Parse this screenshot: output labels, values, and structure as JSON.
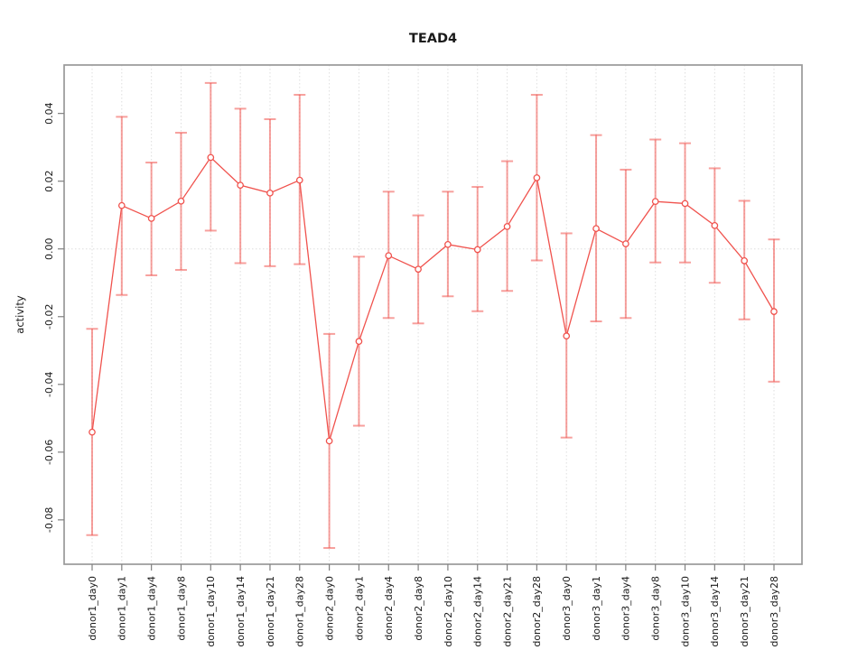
{
  "chart_data": {
    "type": "line",
    "title": "TEAD4",
    "xlabel": "",
    "ylabel": "activity",
    "legend_position": "none",
    "grid": "dotted vertical line at each category; dotted horizontal line at y=0",
    "point_style": "open-circle",
    "error_bars": true,
    "categories": [
      "donor1_day0",
      "donor1_day1",
      "donor1_day4",
      "donor1_day8",
      "donor1_day10",
      "donor1_day14",
      "donor1_day21",
      "donor1_day28",
      "donor2_day0",
      "donor2_day1",
      "donor2_day4",
      "donor2_day8",
      "donor2_day10",
      "donor2_day14",
      "donor2_day21",
      "donor2_day28",
      "donor3_day0",
      "donor3_day1",
      "donor3_day4",
      "donor3_day8",
      "donor3_day10",
      "donor3_day14",
      "donor3_day21",
      "donor3_day28"
    ],
    "series": [
      {
        "name": "TEAD4 activity",
        "values": [
          -0.0541,
          0.0128,
          0.009,
          0.0141,
          0.027,
          0.0188,
          0.0165,
          0.0203,
          -0.0567,
          -0.0273,
          -0.002,
          -0.006,
          0.0013,
          -0.0002,
          0.0066,
          0.021,
          -0.0257,
          0.006,
          0.0015,
          0.014,
          0.0134,
          0.0069,
          -0.0035,
          -0.0185
        ],
        "error_lower": [
          -0.0845,
          -0.0136,
          -0.0078,
          -0.0062,
          0.0054,
          -0.0042,
          -0.0051,
          -0.0045,
          -0.0883,
          -0.0522,
          -0.0204,
          -0.022,
          -0.014,
          -0.0184,
          -0.0124,
          -0.0034,
          -0.0557,
          -0.0214,
          -0.0204,
          -0.004,
          -0.004,
          -0.01,
          -0.0208,
          -0.0392
        ],
        "error_upper": [
          -0.0236,
          0.039,
          0.0255,
          0.0343,
          0.049,
          0.0414,
          0.0383,
          0.0455,
          -0.0251,
          -0.0023,
          0.0169,
          0.0099,
          0.0169,
          0.0183,
          0.0259,
          0.0455,
          0.0046,
          0.0336,
          0.0234,
          0.0323,
          0.0312,
          0.0238,
          0.0142,
          0.0028
        ]
      }
    ],
    "yticks": [
      0.04,
      0.02,
      0,
      -0.02,
      -0.04,
      -0.06,
      -0.08
    ],
    "ylim": [
      -0.0931,
      0.0543
    ],
    "colors": {
      "line": "#f0524d",
      "error_bar": "rgba(240,82,77,0.55)",
      "grid": "#dedede",
      "frame": "#999999",
      "tick": "#808080",
      "text": "#1a1a1a",
      "background": "#ffffff"
    }
  }
}
